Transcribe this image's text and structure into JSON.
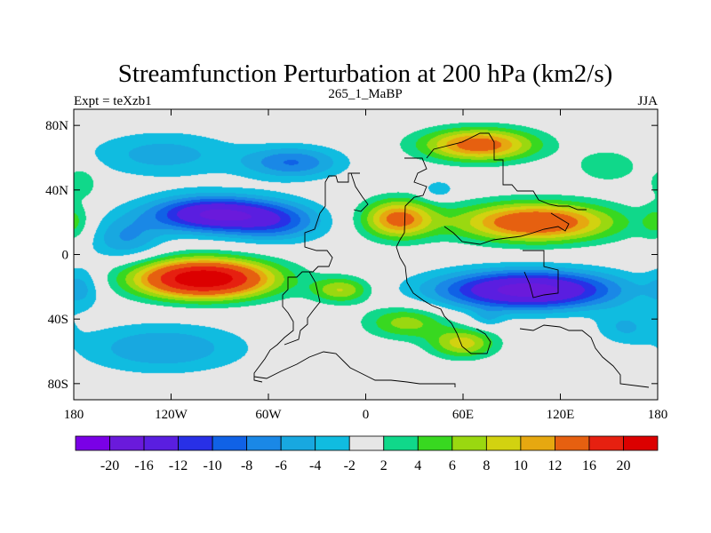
{
  "chart_data": {
    "type": "heatmap",
    "title": "Streamfunction Perturbation at 200 hPa (km2/s)",
    "left_label": "Expt = teXzb1",
    "center_label": "265_1_MaBP",
    "right_label": "JJA",
    "x_ticks": [
      {
        "value": -180,
        "label": "180"
      },
      {
        "value": -120,
        "label": "120W"
      },
      {
        "value": -60,
        "label": "60W"
      },
      {
        "value": 0,
        "label": "0"
      },
      {
        "value": 60,
        "label": "60E"
      },
      {
        "value": 120,
        "label": "120E"
      },
      {
        "value": 180,
        "label": "180"
      }
    ],
    "y_ticks": [
      {
        "value": 80,
        "label": "80N"
      },
      {
        "value": 40,
        "label": "40N"
      },
      {
        "value": 0,
        "label": "0"
      },
      {
        "value": -40,
        "label": "40S"
      },
      {
        "value": -80,
        "label": "80S"
      }
    ],
    "xlim": [
      -180,
      180
    ],
    "ylim": [
      -90,
      90
    ],
    "contour_levels": [
      -20,
      -16,
      -12,
      -10,
      -8,
      -6,
      -4,
      -2,
      2,
      4,
      6,
      8,
      10,
      12,
      16,
      20
    ],
    "colorbar_labels": [
      "-20",
      "-16",
      "-12",
      "-10",
      "-8",
      "-6",
      "-4",
      "-2",
      "2",
      "4",
      "6",
      "8",
      "10",
      "12",
      "16",
      "20"
    ],
    "colors": [
      "#7a00e6",
      "#6a1adb",
      "#5a1ee0",
      "#2830e6",
      "#1062e6",
      "#1a88e6",
      "#18a8e0",
      "#10bce0",
      "#e6e6e6",
      "#10d88a",
      "#38d820",
      "#9ad810",
      "#d2d210",
      "#e6a810",
      "#e66010",
      "#e62010",
      "#dc0000"
    ],
    "field_centers": [
      {
        "lon": -95,
        "lat": 25,
        "amp": -16,
        "rlon": 38,
        "rlat": 11
      },
      {
        "lon": -55,
        "lat": 20,
        "amp": -8,
        "rlon": 30,
        "rlat": 12
      },
      {
        "lon": -148,
        "lat": 10,
        "amp": -6,
        "rlon": 22,
        "rlat": 14
      },
      {
        "lon": -45,
        "lat": 57,
        "amp": -8,
        "rlon": 30,
        "rlat": 10
      },
      {
        "lon": -125,
        "lat": 62,
        "amp": -5,
        "rlon": 45,
        "rlat": 14
      },
      {
        "lon": -100,
        "lat": -15,
        "amp": 24,
        "rlon": 42,
        "rlat": 12
      },
      {
        "lon": -15,
        "lat": -22,
        "amp": 8,
        "rlon": 18,
        "rlat": 8
      },
      {
        "lon": 25,
        "lat": -42,
        "amp": 7,
        "rlon": 25,
        "rlat": 10
      },
      {
        "lon": 60,
        "lat": -55,
        "amp": 9,
        "rlon": 20,
        "rlat": 9
      },
      {
        "lon": -125,
        "lat": -58,
        "amp": -6,
        "rlon": 50,
        "rlat": 15
      },
      {
        "lon": 20,
        "lat": 22,
        "amp": 13,
        "rlon": 22,
        "rlat": 12
      },
      {
        "lon": 105,
        "lat": 20,
        "amp": 16,
        "rlon": 48,
        "rlat": 12
      },
      {
        "lon": 70,
        "lat": 68,
        "amp": 14,
        "rlon": 35,
        "rlat": 10
      },
      {
        "lon": 150,
        "lat": 55,
        "amp": 4,
        "rlon": 20,
        "rlat": 10
      },
      {
        "lon": 100,
        "lat": -22,
        "amp": -18,
        "rlon": 55,
        "rlat": 12
      },
      {
        "lon": 160,
        "lat": -45,
        "amp": -4,
        "rlon": 18,
        "rlat": 10
      },
      {
        "lon": 75,
        "lat": -40,
        "amp": -3,
        "rlon": 10,
        "rlat": 6
      },
      {
        "lon": -180,
        "lat": 20,
        "amp": 4,
        "rlon": 10,
        "rlat": 12
      },
      {
        "lon": -175,
        "lat": -20,
        "amp": -4,
        "rlon": 12,
        "rlat": 14
      },
      {
        "lon": -175,
        "lat": 45,
        "amp": 4,
        "rlon": 10,
        "rlat": 10
      },
      {
        "lon": 45,
        "lat": 40,
        "amp": -4,
        "rlon": 10,
        "rlat": 6
      }
    ]
  }
}
